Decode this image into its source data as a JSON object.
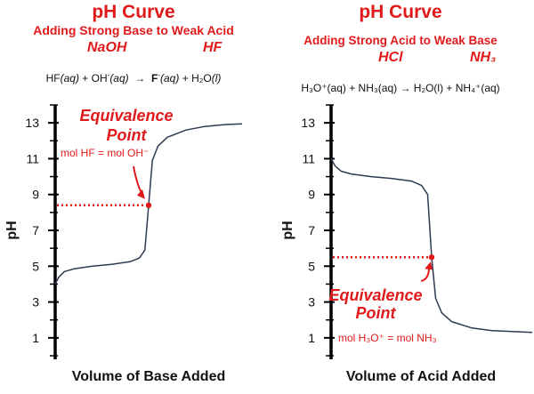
{
  "panels": [
    {
      "title": "pH Curve",
      "subtitle": "Adding Strong Base to Weak Acid",
      "reagents": [
        "NaOH",
        "HF"
      ],
      "equation": {
        "reactant1": "HF",
        "reactant1_state": "(aq)",
        "plus1": "+",
        "reactant2": "OH",
        "reactant2_charge": "-",
        "reactant2_state": "(aq)",
        "arrow": "→",
        "product1": "F",
        "product1_charge": "-",
        "product1_state": "(aq)",
        "plus2": "+",
        "product2": "H₂O",
        "product2_state": "(l)"
      },
      "annotation": {
        "label_line1": "Equivalence",
        "label_line2": "Point",
        "condition": "mol HF = mol OH⁻"
      }
    },
    {
      "title": "pH Curve",
      "subtitle": "Adding Strong Acid to Weak Base",
      "reagents": [
        "HCl",
        "NH₃"
      ],
      "equation": {
        "text": "H₃O⁺(aq) + NH₃(aq)  →  H₂O(l) + NH₄⁺(aq)"
      },
      "annotation": {
        "label_line1": "Equivalence",
        "label_line2": "Point",
        "condition": "mol H₃O⁺ = mol NH₃"
      }
    }
  ],
  "chart_data": [
    {
      "type": "line",
      "title": "pH Curve",
      "xlabel": "Volume of Base Added",
      "ylabel": "pH",
      "yticks": [
        1,
        3,
        5,
        7,
        9,
        11,
        13
      ],
      "ylim": [
        0,
        14
      ],
      "xlim": [
        0,
        1
      ],
      "grid": false,
      "series": [
        {
          "x": [
            0,
            0.02,
            0.05,
            0.1,
            0.2,
            0.3,
            0.4,
            0.45,
            0.48,
            0.5,
            0.52,
            0.55,
            0.6,
            0.7,
            0.8,
            0.9,
            1.0
          ],
          "y": [
            4.0,
            4.4,
            4.7,
            4.85,
            5.0,
            5.1,
            5.25,
            5.45,
            5.9,
            8.4,
            10.9,
            11.7,
            12.2,
            12.6,
            12.8,
            12.9,
            12.95
          ]
        }
      ],
      "equivalence_point": {
        "x": 0.5,
        "y": 8.4
      },
      "colors": {
        "curve": "#2c3a52",
        "annotation": "#e01a1a"
      }
    },
    {
      "type": "line",
      "title": "pH Curve",
      "xlabel": "Volume of Acid Added",
      "ylabel": "pH",
      "yticks": [
        1,
        3,
        5,
        7,
        9,
        11,
        13
      ],
      "ylim": [
        0,
        14
      ],
      "xlim": [
        0,
        1
      ],
      "grid": false,
      "series": [
        {
          "x": [
            0,
            0.02,
            0.05,
            0.1,
            0.2,
            0.3,
            0.4,
            0.45,
            0.48,
            0.5,
            0.52,
            0.55,
            0.6,
            0.7,
            0.8,
            0.9,
            1.0
          ],
          "y": [
            11.0,
            10.6,
            10.3,
            10.15,
            10.0,
            9.9,
            9.75,
            9.5,
            9.0,
            5.5,
            3.2,
            2.4,
            1.9,
            1.55,
            1.4,
            1.35,
            1.3
          ]
        }
      ],
      "equivalence_point": {
        "x": 0.5,
        "y": 5.5
      },
      "colors": {
        "curve": "#2c3a52",
        "annotation": "#e01a1a"
      }
    }
  ]
}
